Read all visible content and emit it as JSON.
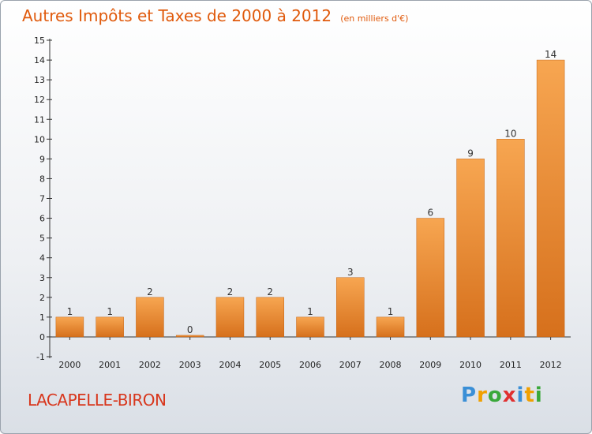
{
  "chart_data": {
    "type": "bar",
    "title": "Autres Impôts et Taxes de 2000 à 2012",
    "subtitle": "(en milliers d'€)",
    "categories": [
      "2000",
      "2001",
      "2002",
      "2003",
      "2004",
      "2005",
      "2006",
      "2007",
      "2008",
      "2009",
      "2010",
      "2011",
      "2012"
    ],
    "values": [
      1,
      1,
      2,
      0,
      2,
      2,
      1,
      3,
      1,
      6,
      9,
      10,
      14
    ],
    "ylim": [
      -1,
      15
    ],
    "yticks": [
      -1,
      0,
      1,
      2,
      3,
      4,
      5,
      6,
      7,
      8,
      9,
      10,
      11,
      12,
      13,
      14,
      15
    ],
    "grid": false,
    "bar_colors": {
      "top": "#f7a651",
      "bottom": "#d6701c"
    }
  },
  "town": "LACAPELLE-BIRON",
  "brand": {
    "letters": [
      "P",
      "r",
      "o",
      "x",
      "i",
      "t",
      "i"
    ],
    "colors": [
      "#3a8fd6",
      "#f0a000",
      "#3aa83a",
      "#e03030",
      "#3a8fd6",
      "#f0a000",
      "#3aa83a"
    ]
  }
}
